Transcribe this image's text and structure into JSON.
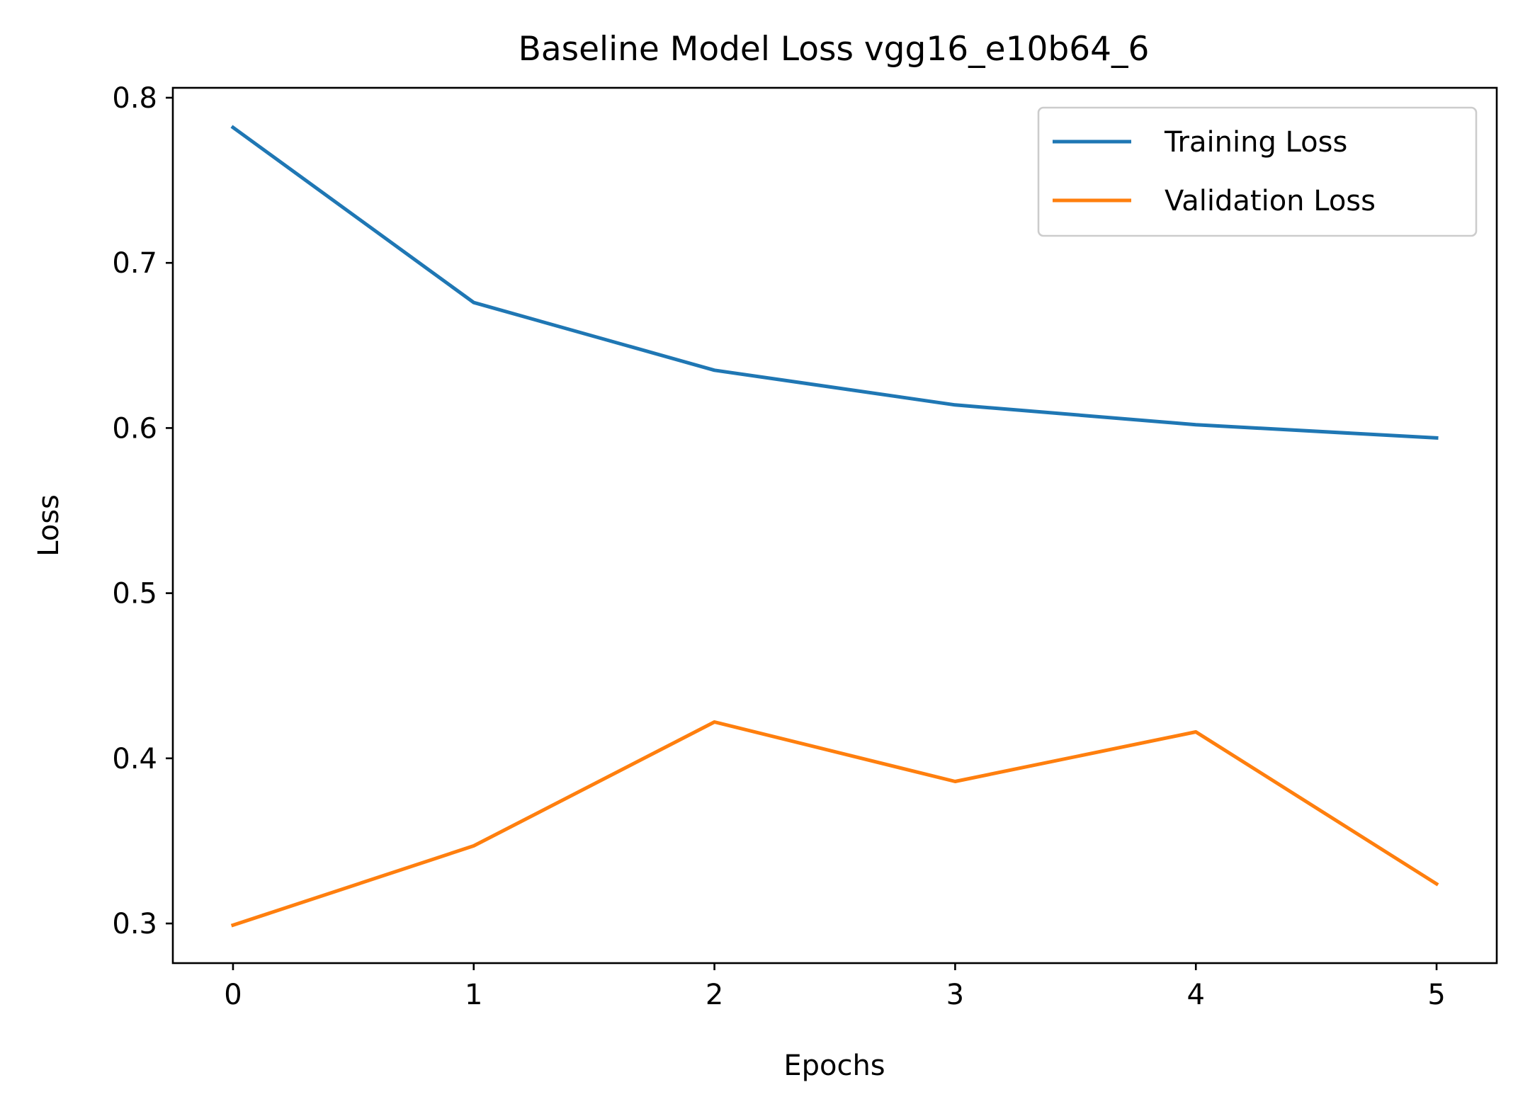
{
  "chart_data": {
    "type": "line",
    "title": "Baseline Model Loss vgg16_e10b64_6",
    "xlabel": "Epochs",
    "ylabel": "Loss",
    "x": [
      0,
      1,
      2,
      3,
      4,
      5
    ],
    "xticks": [
      "0",
      "1",
      "2",
      "3",
      "4",
      "5"
    ],
    "yticks": [
      "0.3",
      "0.4",
      "0.5",
      "0.6",
      "0.7",
      "0.8"
    ],
    "xlim": [
      -0.25,
      5.25
    ],
    "ylim": [
      0.276,
      0.806
    ],
    "grid": false,
    "legend_position": "top-right",
    "series": [
      {
        "name": "Training Loss",
        "color": "#1f77b4",
        "values": [
          0.782,
          0.676,
          0.635,
          0.614,
          0.602,
          0.594
        ]
      },
      {
        "name": "Validation Loss",
        "color": "#ff7f0e",
        "values": [
          0.299,
          0.347,
          0.422,
          0.386,
          0.416,
          0.324
        ]
      }
    ]
  }
}
